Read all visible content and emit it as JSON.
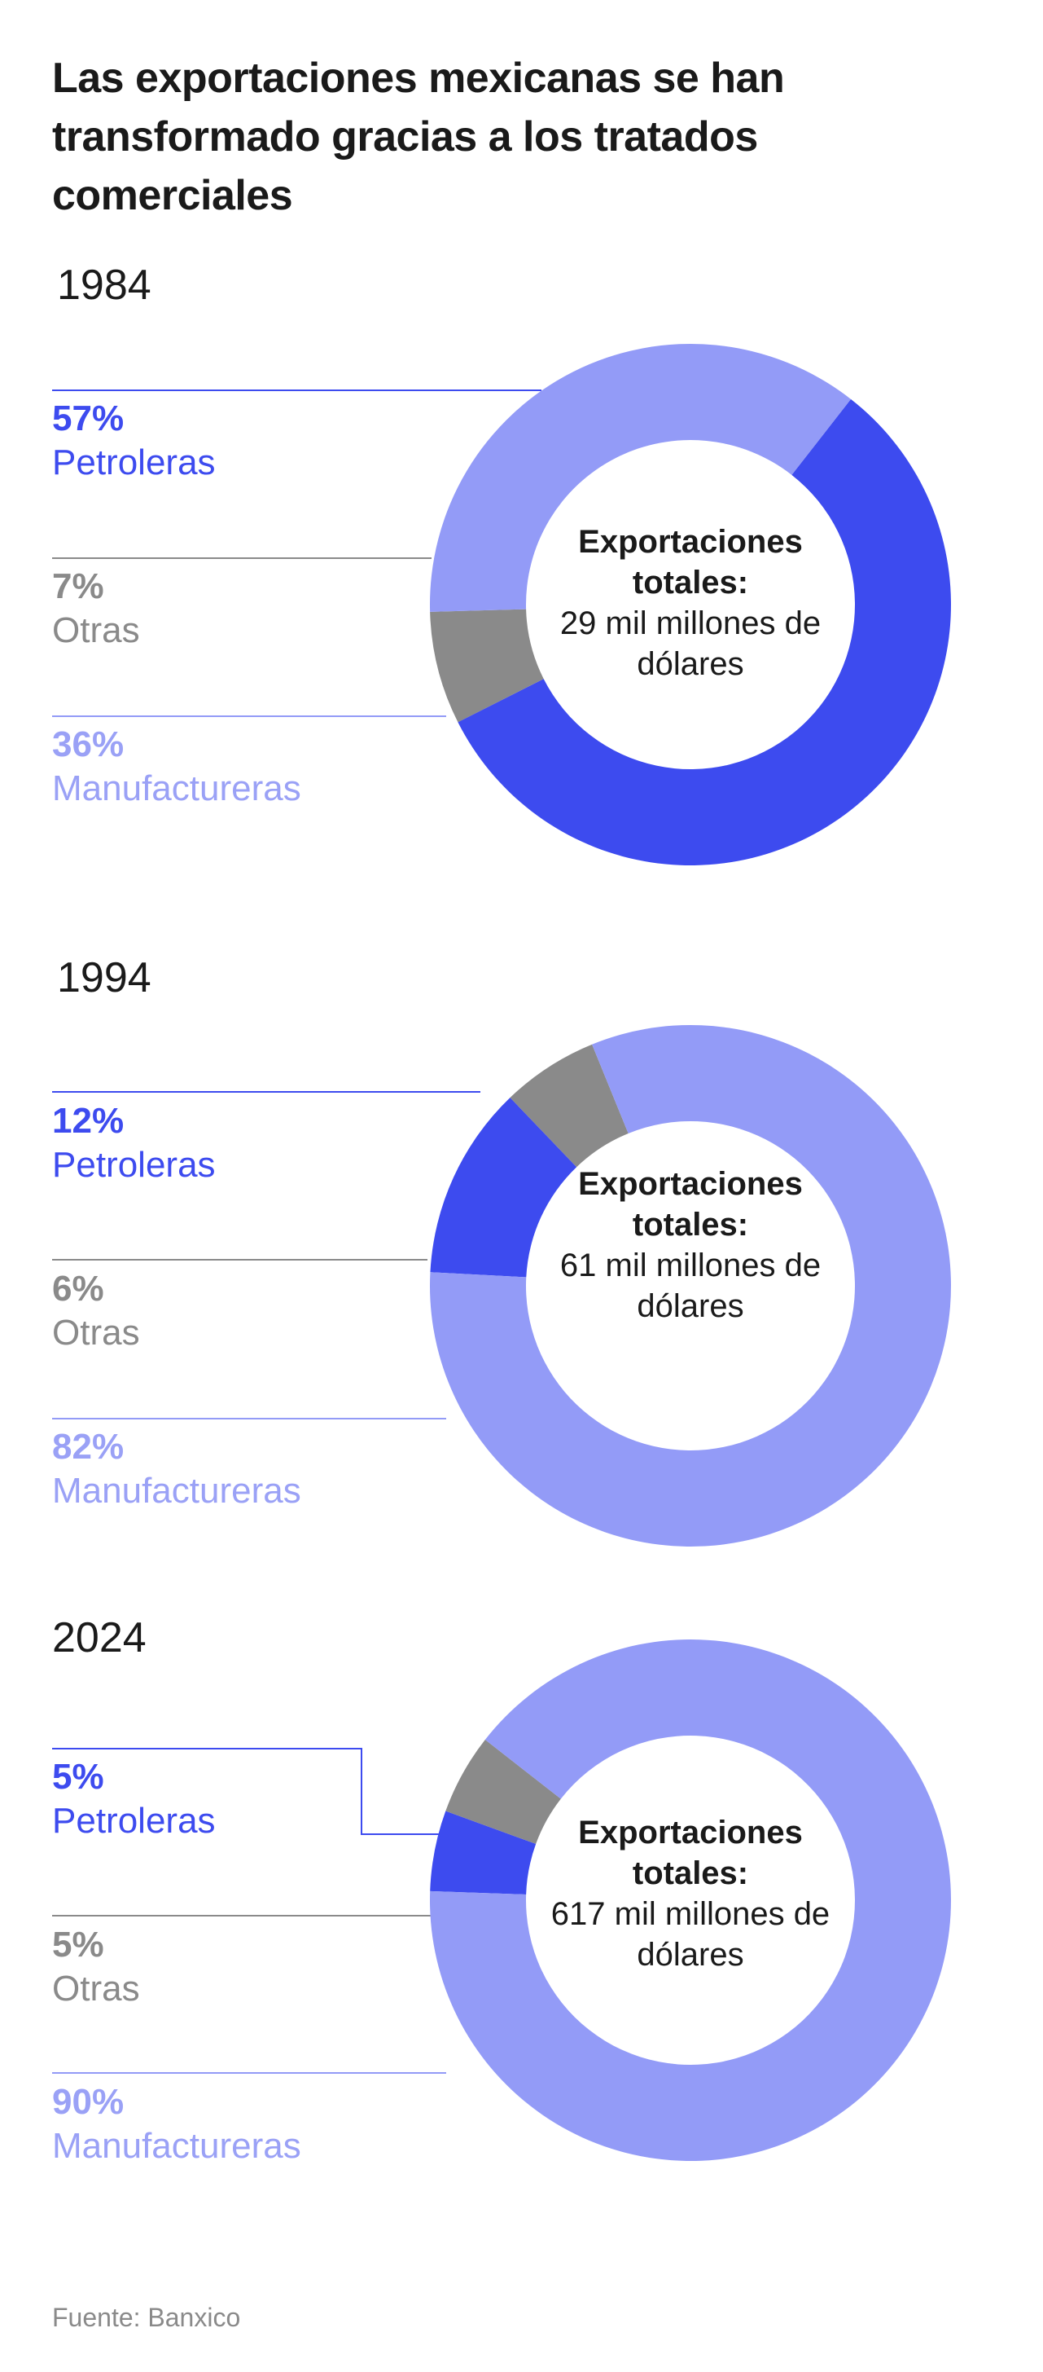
{
  "title": "Las exportaciones mexicanas se han transformado gracias a los tratados comerciales",
  "source": "Fuente: Banxico",
  "colors": {
    "petroleras": "#3d4bef",
    "otras": "#8a8a8a",
    "manufactureras": "#939bf7"
  },
  "chart_data": [
    {
      "type": "pie",
      "title": "1984",
      "categories": [
        "Petroleras",
        "Otras",
        "Manufactureras"
      ],
      "values": [
        57,
        7,
        36
      ],
      "labels": [
        "57%",
        "7%",
        "36%"
      ],
      "center": {
        "heading": "Exportaciones totales:",
        "value": "29 mil millones de dólares"
      }
    },
    {
      "type": "pie",
      "title": "1994",
      "categories": [
        "Petroleras",
        "Otras",
        "Manufactureras"
      ],
      "values": [
        12,
        6,
        82
      ],
      "labels": [
        "12%",
        "6%",
        "82%"
      ],
      "center": {
        "heading": "Exportaciones totales:",
        "value": "61 mil millones de dólares"
      }
    },
    {
      "type": "pie",
      "title": "2024",
      "categories": [
        "Petroleras",
        "Otras",
        "Manufactureras"
      ],
      "values": [
        5,
        5,
        90
      ],
      "labels": [
        "5%",
        "5%",
        "90%"
      ],
      "center": {
        "heading": "Exportaciones totales:",
        "value": "617 mil millones de dólares"
      }
    }
  ]
}
